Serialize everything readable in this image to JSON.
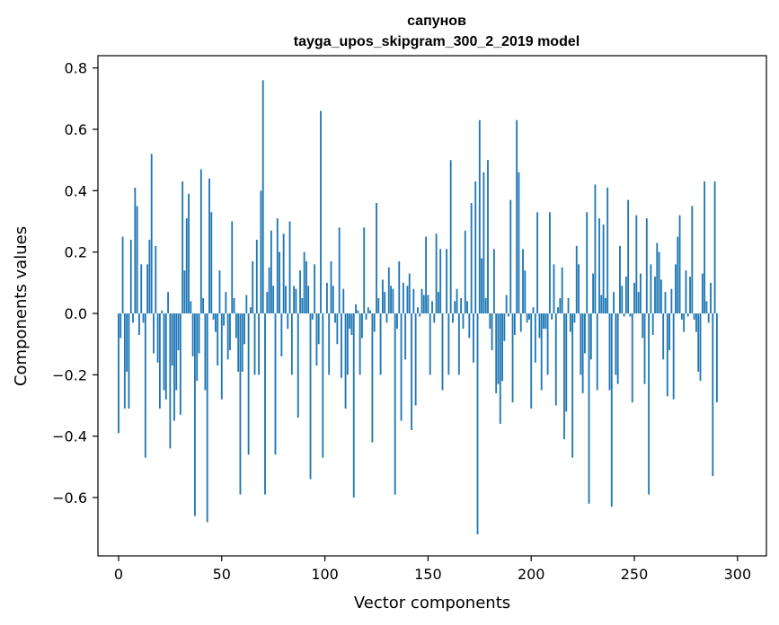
{
  "chart_data": {
    "type": "bar",
    "title": "сапунов",
    "subtitle": "tayga_upos_skipgram_300_2_2019 model",
    "xlabel": "Vector components",
    "ylabel": "Components values",
    "xlim": [
      -10,
      314
    ],
    "ylim": [
      -0.79,
      0.84
    ],
    "xticks": [
      0,
      50,
      100,
      150,
      200,
      250,
      300
    ],
    "yticks": [
      -0.6,
      -0.4,
      -0.2,
      0.0,
      0.2,
      0.4,
      0.6,
      0.8
    ],
    "ytick_labels": [
      "−0.6",
      "−0.4",
      "−0.2",
      "0.0",
      "0.2",
      "0.4",
      "0.6",
      "0.8"
    ],
    "bar_color": "#1f77b4",
    "grid": false,
    "legend": "none",
    "values": [
      -0.39,
      -0.08,
      0.25,
      -0.31,
      -0.19,
      -0.31,
      0.24,
      -0.03,
      0.41,
      0.35,
      -0.07,
      0.16,
      -0.03,
      -0.47,
      0.16,
      0.24,
      0.52,
      -0.13,
      0.22,
      -0.16,
      -0.31,
      0.01,
      -0.25,
      -0.28,
      0.07,
      -0.44,
      -0.17,
      -0.35,
      -0.25,
      -0.12,
      -0.33,
      0.43,
      0.14,
      0.31,
      0.39,
      0.04,
      -0.14,
      -0.66,
      -0.22,
      -0.13,
      0.47,
      0.05,
      -0.25,
      -0.68,
      0.44,
      0.33,
      -0.02,
      -0.06,
      -0.17,
      0.14,
      -0.28,
      -0.04,
      0.07,
      -0.15,
      -0.12,
      0.3,
      0.05,
      -0.08,
      -0.19,
      -0.59,
      -0.19,
      -0.1,
      0.06,
      -0.46,
      0.02,
      0.17,
      -0.2,
      0.24,
      -0.2,
      0.4,
      0.76,
      -0.59,
      0.07,
      0.15,
      0.27,
      0.09,
      -0.46,
      0.31,
      0.2,
      -0.14,
      0.26,
      0.09,
      -0.05,
      0.3,
      -0.2,
      0.09,
      0.08,
      -0.34,
      0.14,
      0.05,
      0.2,
      0.17,
      0.09,
      -0.54,
      -0.02,
      0.16,
      -0.17,
      -0.1,
      0.66,
      -0.47,
      0.0,
      0.1,
      -0.2,
      0.17,
      0.09,
      -0.03,
      -0.1,
      0.28,
      -0.21,
      0.08,
      -0.31,
      -0.2,
      -0.05,
      -0.07,
      -0.6,
      0.03,
      0.01,
      -0.2,
      -0.08,
      0.28,
      -0.02,
      0.02,
      0.01,
      -0.42,
      -0.06,
      0.36,
      0.05,
      -0.2,
      0.11,
      0.07,
      -0.03,
      0.15,
      0.09,
      0.08,
      -0.59,
      -0.05,
      0.17,
      -0.35,
      0.1,
      -0.15,
      0.09,
      0.13,
      -0.38,
      0.08,
      -0.3,
      0.02,
      -0.01,
      0.08,
      0.06,
      0.25,
      0.06,
      -0.2,
      0.04,
      -0.03,
      0.26,
      0.07,
      0.21,
      -0.25,
      0.0,
      0.21,
      -0.2,
      0.5,
      -0.03,
      0.04,
      0.08,
      -0.2,
      0.05,
      -0.05,
      0.27,
      0.04,
      -0.08,
      0.36,
      -0.16,
      0.43,
      -0.72,
      0.63,
      0.18,
      0.46,
      0.05,
      0.5,
      -0.05,
      -0.12,
      0.21,
      -0.26,
      -0.23,
      -0.36,
      -0.22,
      -0.09,
      0.06,
      -0.01,
      0.37,
      -0.29,
      -0.07,
      0.63,
      0.46,
      -0.06,
      0.21,
      0.14,
      -0.03,
      -0.02,
      -0.31,
      0.02,
      -0.16,
      0.33,
      -0.08,
      -0.25,
      -0.05,
      -0.05,
      -0.2,
      0.33,
      -0.02,
      0.16,
      -0.3,
      0.02,
      0.05,
      0.15,
      -0.41,
      -0.32,
      0.05,
      -0.06,
      -0.47,
      -0.03,
      0.22,
      0.16,
      -0.2,
      -0.26,
      -0.13,
      0.33,
      -0.62,
      -0.15,
      0.13,
      0.42,
      -0.25,
      0.31,
      0.06,
      0.29,
      0.05,
      0.41,
      -0.25,
      -0.63,
      0.07,
      -0.2,
      -0.23,
      0.22,
      0.09,
      -0.01,
      0.12,
      0.37,
      -0.01,
      -0.29,
      0.1,
      0.32,
      0.07,
      0.13,
      -0.08,
      -0.23,
      0.31,
      -0.59,
      0.16,
      -0.07,
      0.12,
      0.23,
      0.2,
      0.11,
      -0.15,
      0.07,
      -0.27,
      -0.12,
      0.08,
      -0.28,
      0.16,
      0.25,
      0.32,
      -0.02,
      -0.06,
      0.14,
      -0.01,
      0.12,
      0.35,
      -0.02,
      -0.06,
      -0.19,
      -0.22,
      0.13,
      0.43,
      0.04,
      -0.03,
      0.1,
      -0.53,
      0.43,
      -0.29
    ]
  }
}
